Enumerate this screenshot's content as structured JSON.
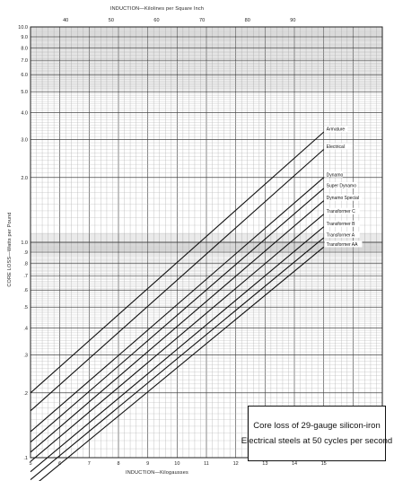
{
  "chart_data": {
    "type": "line",
    "title": "Core loss of 29-gauge silicon-iron",
    "subtitle": "Electrical steels at 50 cycles per second",
    "xlabel": "INDUCTION—Kilogausses",
    "x2label": "INDUCTION—Kilolines per Square Inch",
    "ylabel": "CORE LOSS—Watts per Pound",
    "xscale": "linear",
    "yscale": "log",
    "xlim": [
      5,
      17
    ],
    "ylim": [
      0.1,
      10
    ],
    "x_ticks": [
      "5",
      "6",
      "7",
      "8",
      "9",
      "10",
      "11",
      "12",
      "13",
      "14",
      "15"
    ],
    "x2_ticks": [
      "40",
      "50",
      "60",
      "70",
      "80",
      "90"
    ],
    "y_ticks": [
      "10.0",
      "9.0",
      "8.0",
      "7.0",
      "6.0",
      "5.0",
      "4.0",
      "3.0",
      "2.0",
      "1.0",
      ".9",
      ".8",
      ".7",
      ".6",
      ".5",
      ".4",
      ".3",
      ".2",
      ".1"
    ],
    "grid": true,
    "series": [
      {
        "name": "Armature",
        "x": [
          5,
          15
        ],
        "y": [
          0.2,
          3.25
        ]
      },
      {
        "name": "Electrical",
        "x": [
          5,
          15
        ],
        "y": [
          0.165,
          2.7
        ]
      },
      {
        "name": "Dynamo",
        "x": [
          5,
          15
        ],
        "y": [
          0.132,
          2.0
        ]
      },
      {
        "name": "Super Dynamo",
        "x": [
          5,
          15
        ],
        "y": [
          0.118,
          1.78
        ]
      },
      {
        "name": "Dynamo Special",
        "x": [
          5,
          15
        ],
        "y": [
          0.106,
          1.56
        ]
      },
      {
        "name": "Transformer C",
        "x": [
          5,
          15
        ],
        "y": [
          0.096,
          1.35
        ]
      },
      {
        "name": "Transformer B",
        "x": [
          5,
          15
        ],
        "y": [
          0.086,
          1.18
        ]
      },
      {
        "name": "Transformer A",
        "x": [
          5,
          15
        ],
        "y": [
          0.079,
          1.05
        ]
      },
      {
        "name": "Transformer AA",
        "x": [
          5,
          15
        ],
        "y": [
          0.072,
          0.95
        ]
      }
    ]
  }
}
